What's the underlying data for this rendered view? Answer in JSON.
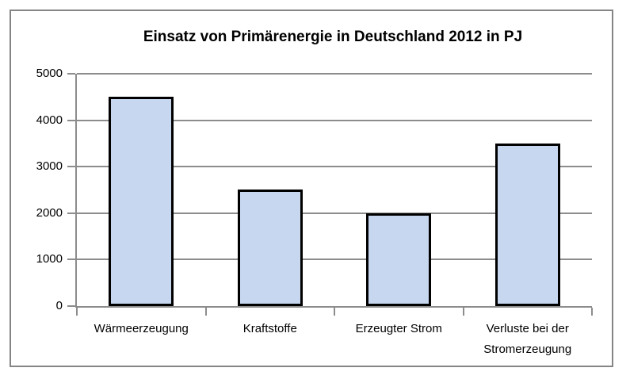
{
  "chart_data": {
    "type": "bar",
    "title": "Einsatz von Primärenergie in Deutschland 2012 in PJ",
    "categories": [
      "Wärmeerzeugung",
      "Kraftstoffe",
      "Erzeugter Strom",
      "Verluste bei der Stromerzeugung"
    ],
    "values": [
      4500,
      2500,
      2000,
      3500
    ],
    "xlabel": "",
    "ylabel": "",
    "ylim": [
      0,
      5000
    ],
    "ytick_step": 1000,
    "ytick_labels": [
      "0",
      "1000",
      "2000",
      "3000",
      "4000",
      "5000"
    ],
    "grid": true,
    "legend_position": "none",
    "colors": {
      "bar_fill": "#c6d7ef",
      "bar_border": "#000000",
      "gridline": "#8c8c8c",
      "axis": "#8c8c8c",
      "frame_border": "#858585",
      "text": "#000000",
      "background": "#ffffff"
    }
  }
}
